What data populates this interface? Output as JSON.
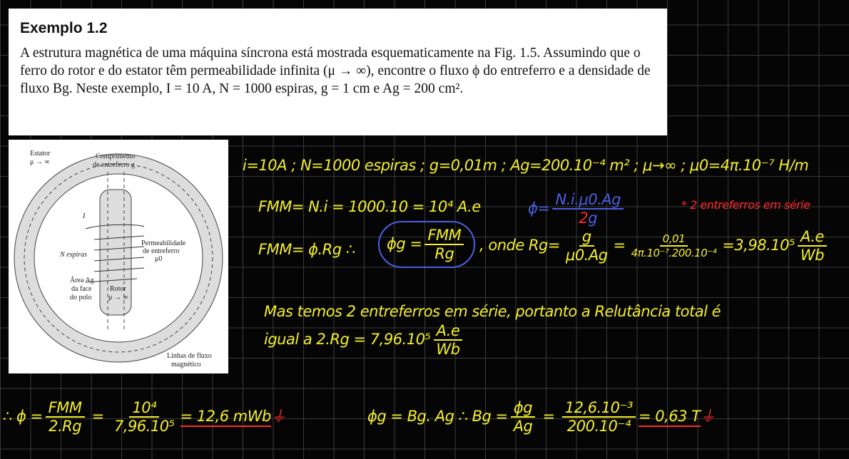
{
  "book": {
    "title": "Exemplo 1.2",
    "text": "A estrutura magnética de uma máquina síncrona está mostrada esquematicamente na Fig. 1.5. Assumindo que o ferro do rotor e do estator têm permeabilidade infinita (μ → ∞), encontre o fluxo ϕ do entreferro e a densidade de fluxo Bg. Neste exemplo, I = 10 A, N = 1000 espiras, g = 1 cm e Ag = 200 cm²."
  },
  "figure": {
    "labels": [
      "Estator",
      "μ → ∞",
      "Comprimento",
      "de entreferro g",
      "I",
      "N espiras",
      "Permeabilidade",
      "de entreferro",
      "μ0",
      "Área Ag",
      "da face",
      "do polo",
      "Rotor",
      "μ → ∞",
      "Linhas de fluxo",
      "magnético"
    ]
  },
  "notes": {
    "line1": "i=10A ; N=1000 espiras ; g=0,01m ; Ag=200.10⁻⁴ m² ; μ→∞ ; μ0=4π.10⁻⁷ H/m",
    "fmm1": "FMM= N.i = 1000.10 = 10⁴ A.e",
    "phi_num": "N.i.μ0.Ag",
    "phi_lhs": "ϕ=",
    "phi_den_red": "2",
    "phi_den": "g",
    "red_note": "* 2 entreferros em série",
    "fmm2": "FMM= ϕ.Rg ∴",
    "phig_lhs": "ϕg =",
    "phig_num": "FMM",
    "phig_den": "Rg",
    "onde": ", onde Rg=",
    "rg_num": "g",
    "rg_den": "μ0.Ag",
    "eq": "=",
    "rg_num2": "0,01",
    "rg_den2": "4π.10⁻⁷.200.10⁻⁴",
    "rg_val": "=3,98.10⁵",
    "unit_num": "A.e",
    "unit_den": "Wb",
    "mas1": "Mas temos 2 entreferros em série, portanto a Relutância total é",
    "mas2": "igual a 2.Rg = 7,96.10⁵",
    "mas_unit_num": "A.e",
    "mas_unit_den": "Wb",
    "final_therefore": "∴ ϕ =",
    "f1_num": "FMM",
    "f1_den": "2.Rg",
    "f2_num": "10⁴",
    "f2_den": "7,96.10⁵",
    "f_res": "= 12,6 mWb",
    "bg_lhs": "ϕg = Bg. Ag ∴ Bg =",
    "bg_num": "ϕg",
    "bg_den": "Ag",
    "bg_num2": "12,6.10⁻³",
    "bg_den2": "200.10⁻⁴",
    "bg_res": "= 0,63 T"
  },
  "colors": {
    "ink": "#f4ef2a",
    "blue": "#4a5fe0",
    "red": "#ff2a2a",
    "background": "#050505"
  }
}
